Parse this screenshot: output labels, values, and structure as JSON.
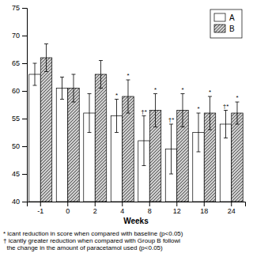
{
  "chart_data": {
    "type": "bar",
    "x_label": "Weeks",
    "categories": [
      "-1",
      "0",
      "2",
      "4",
      "8",
      "12",
      "18",
      "24"
    ],
    "series": [
      {
        "name": "A",
        "color": "#ffffff",
        "values": [
          63.0,
          60.5,
          56.0,
          55.5,
          51.0,
          49.5,
          52.5,
          54.0
        ],
        "errors": [
          2.0,
          2.0,
          3.5,
          3.0,
          4.5,
          4.5,
          3.5,
          2.5
        ],
        "annotations": [
          null,
          null,
          null,
          "*",
          "†*",
          "†*",
          "*",
          "†*"
        ]
      },
      {
        "name": "B",
        "color": "#cccccc",
        "values": [
          66.0,
          60.5,
          63.0,
          59.0,
          56.5,
          56.5,
          56.0,
          56.0
        ],
        "errors": [
          2.5,
          2.5,
          2.5,
          3.0,
          3.0,
          3.0,
          3.0,
          2.0
        ],
        "annotations": [
          null,
          null,
          null,
          "*",
          "*",
          "*",
          "*",
          "*"
        ]
      }
    ],
    "ylim": [
      40,
      75
    ],
    "yticks": [
      40,
      45,
      50,
      55,
      60,
      65,
      70,
      75
    ],
    "grid": false,
    "legend": "upper right",
    "footnote": [
      "* icant reduction in score when compared with baseline (p<0.05)",
      "† icantly greater reduction when compared with Group B followi",
      "  the change in the amount of paracetamol used (p<0.05)"
    ]
  }
}
